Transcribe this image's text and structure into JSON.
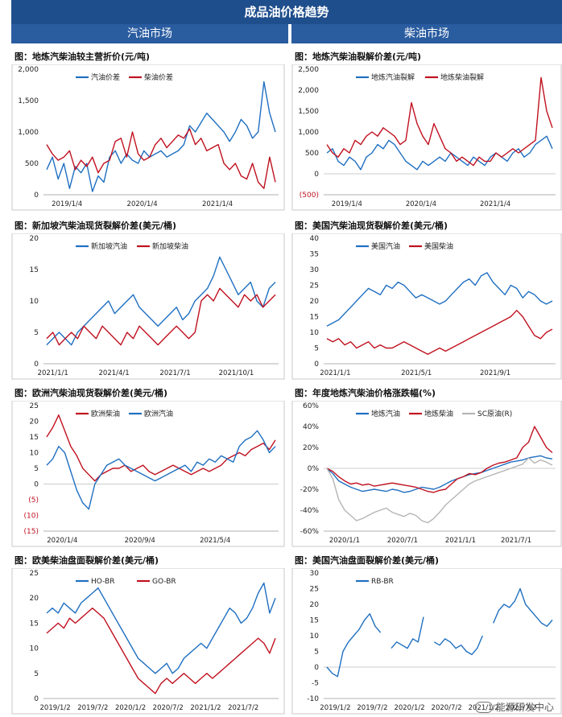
{
  "header": {
    "title": "成品油价格趋势",
    "left_section": "汽油市场",
    "right_section": "柴油市场"
  },
  "watermark": "能源研发中心",
  "colors": {
    "blue": "#1f6fc1",
    "red": "#c0111f",
    "gray": "#b5b5b5",
    "header_bg": "#1f4e8c"
  },
  "chart_data": [
    {
      "id": "c1",
      "type": "line",
      "title": "图：地炼汽柴油较主营折价(元/吨)",
      "yticks": [
        0,
        500,
        1000,
        1500,
        2000
      ],
      "ytick_labels": [
        "0",
        "500",
        "1,000",
        "1,500",
        "2,000"
      ],
      "ylim": [
        0,
        2000
      ],
      "xtick_labels": [
        "2019/1/4",
        "2020/1/4",
        "2021/1/4"
      ],
      "xtick_pos": [
        0.1,
        0.42,
        0.74
      ],
      "legend": [
        "汽油价差",
        "柴油价差"
      ],
      "series": [
        {
          "name": "汽油价差",
          "color": "blue",
          "values": [
            400,
            600,
            250,
            500,
            100,
            450,
            350,
            500,
            50,
            300,
            200,
            600,
            700,
            500,
            650,
            550,
            500,
            700,
            600,
            650,
            700,
            600,
            650,
            700,
            800,
            1100,
            1000,
            1150,
            1300,
            1200,
            1100,
            1000,
            850,
            1000,
            1200,
            1100,
            900,
            1000,
            1800,
            1300,
            1000
          ]
        },
        {
          "name": "柴油价差",
          "color": "red",
          "values": [
            800,
            650,
            550,
            600,
            700,
            400,
            550,
            450,
            600,
            350,
            500,
            550,
            850,
            900,
            600,
            1000,
            650,
            550,
            600,
            800,
            900,
            750,
            850,
            950,
            900,
            1050,
            800,
            900,
            700,
            750,
            800,
            500,
            400,
            500,
            300,
            250,
            500,
            200,
            100,
            600,
            200
          ]
        }
      ]
    },
    {
      "id": "c2",
      "type": "line",
      "title": "图：地炼汽柴油裂解价差(元/吨)",
      "yticks": [
        -500,
        0,
        500,
        1000,
        1500,
        2000,
        2500
      ],
      "ytick_labels": [
        "(500)",
        "0",
        "500",
        "1,000",
        "1,500",
        "2,000",
        "2,500"
      ],
      "ytick_red": [
        -500
      ],
      "ylim": [
        -500,
        2500
      ],
      "xtick_labels": [
        "2019/1/4",
        "2020/1/4",
        "2021/1/4"
      ],
      "xtick_pos": [
        0.1,
        0.42,
        0.74
      ],
      "legend": [
        "地炼汽油裂解",
        "地炼柴油裂解"
      ],
      "series": [
        {
          "name": "地炼汽油裂解",
          "color": "blue",
          "values": [
            500,
            600,
            300,
            200,
            400,
            300,
            100,
            400,
            500,
            700,
            600,
            800,
            700,
            500,
            300,
            200,
            100,
            300,
            200,
            300,
            400,
            300,
            500,
            400,
            300,
            200,
            400,
            300,
            200,
            400,
            500,
            400,
            300,
            500,
            600,
            400,
            500,
            700,
            800,
            900,
            600
          ]
        },
        {
          "name": "地炼柴油裂解",
          "color": "red",
          "values": [
            700,
            500,
            400,
            600,
            500,
            800,
            700,
            900,
            1000,
            900,
            1100,
            1000,
            900,
            700,
            800,
            1700,
            1200,
            900,
            700,
            1200,
            900,
            600,
            500,
            300,
            400,
            300,
            200,
            400,
            300,
            300,
            500,
            400,
            500,
            600,
            500,
            600,
            700,
            800,
            2300,
            1500,
            1100
          ]
        }
      ]
    },
    {
      "id": "c3",
      "type": "line",
      "title": "图：新加坡汽柴油现货裂解价差(美元/桶)",
      "yticks": [
        0,
        5,
        10,
        15,
        20
      ],
      "ytick_labels": [
        "0",
        "5",
        "10",
        "15",
        "20"
      ],
      "ylim": [
        0,
        20
      ],
      "xtick_labels": [
        "2021/1/1",
        "2021/4/1",
        "2021/7/1",
        "2021/10/1"
      ],
      "xtick_pos": [
        0.04,
        0.3,
        0.56,
        0.82
      ],
      "legend": [
        "新加坡汽油",
        "新加坡柴油"
      ],
      "series": [
        {
          "name": "新加坡汽油",
          "color": "blue",
          "values": [
            3,
            4,
            5,
            4,
            3,
            5,
            6,
            7,
            8,
            9,
            10,
            8,
            9,
            10,
            11,
            9,
            8,
            7,
            6,
            7,
            8,
            9,
            7,
            8,
            10,
            11,
            12,
            14,
            17,
            15,
            13,
            11,
            12,
            13,
            10,
            9,
            12,
            13
          ]
        },
        {
          "name": "新加坡柴油",
          "color": "red",
          "values": [
            4,
            5,
            3,
            4,
            5,
            4,
            6,
            5,
            4,
            6,
            5,
            4,
            3,
            5,
            4,
            6,
            5,
            4,
            3,
            4,
            5,
            6,
            5,
            4,
            5,
            10,
            11,
            10,
            12,
            11,
            10,
            9,
            11,
            10,
            11,
            9,
            10,
            11
          ]
        }
      ]
    },
    {
      "id": "c4",
      "type": "line",
      "title": "图：美国汽柴油现货裂解价差(美元/桶)",
      "yticks": [
        0,
        5,
        10,
        15,
        20,
        25,
        30,
        35,
        40
      ],
      "ytick_labels": [
        "0",
        "5",
        "10",
        "15",
        "20",
        "25",
        "30",
        "35",
        "40"
      ],
      "ylim": [
        0,
        40
      ],
      "xtick_labels": [
        "2021/1/1",
        "2021/5/1",
        "2021/9/1"
      ],
      "xtick_pos": [
        0.05,
        0.4,
        0.74
      ],
      "legend": [
        "美国汽油",
        "美国柴油"
      ],
      "series": [
        {
          "name": "美国汽油",
          "color": "blue",
          "values": [
            12,
            13,
            14,
            16,
            18,
            20,
            22,
            24,
            23,
            22,
            25,
            24,
            26,
            25,
            23,
            21,
            22,
            21,
            20,
            19,
            20,
            22,
            24,
            26,
            27,
            25,
            28,
            29,
            26,
            24,
            22,
            25,
            24,
            21,
            23,
            22,
            20,
            19,
            20
          ]
        },
        {
          "name": "美国柴油",
          "color": "red",
          "values": [
            8,
            7,
            8,
            6,
            7,
            5,
            6,
            7,
            5,
            6,
            5,
            5,
            6,
            7,
            6,
            5,
            4,
            3,
            4,
            5,
            4,
            5,
            6,
            7,
            8,
            9,
            10,
            11,
            12,
            13,
            14,
            15,
            17,
            15,
            12,
            9,
            8,
            10,
            11
          ]
        }
      ]
    },
    {
      "id": "c5",
      "type": "line",
      "title": "图：欧洲汽柴油现货裂解价差(美元/桶)",
      "yticks": [
        -15,
        -10,
        -5,
        0,
        5,
        10,
        15,
        20,
        25
      ],
      "ytick_labels": [
        "(15)",
        "(10)",
        "(5)",
        "0",
        "5",
        "10",
        "15",
        "20",
        "25"
      ],
      "ytick_red": [
        -15,
        -10,
        -5
      ],
      "ylim": [
        -15,
        25
      ],
      "xtick_labels": [
        "2020/1/4",
        "2020/9/4",
        "2021/5/4"
      ],
      "xtick_pos": [
        0.08,
        0.41,
        0.73
      ],
      "legend": [
        "欧洲柴油",
        "欧洲汽油"
      ],
      "series": [
        {
          "name": "欧洲柴油",
          "color": "red",
          "values": [
            15,
            18,
            22,
            17,
            12,
            9,
            5,
            3,
            1,
            3,
            4,
            5,
            5,
            6,
            4,
            5,
            6,
            4,
            3,
            4,
            5,
            6,
            5,
            4,
            3,
            4,
            5,
            4,
            5,
            6,
            8,
            9,
            10,
            9,
            11,
            12,
            13,
            11,
            14
          ]
        },
        {
          "name": "欧洲汽油",
          "color": "blue",
          "values": [
            6,
            8,
            12,
            10,
            4,
            -2,
            -6,
            -8,
            0,
            3,
            6,
            7,
            8,
            6,
            5,
            4,
            3,
            2,
            1,
            2,
            3,
            4,
            5,
            6,
            4,
            7,
            6,
            8,
            7,
            9,
            8,
            7,
            12,
            14,
            15,
            17,
            14,
            10,
            12
          ]
        }
      ]
    },
    {
      "id": "c6",
      "type": "line",
      "title": "图：年度地炼汽柴油价格涨跌幅(%)",
      "yticks": [
        -60,
        -40,
        -20,
        0,
        20,
        40,
        60
      ],
      "ytick_labels": [
        "-60%",
        "-40%",
        "-20%",
        "0%",
        "20%",
        "40%",
        "60%"
      ],
      "ylim": [
        -60,
        60
      ],
      "xtick_labels": [
        "2020/1/1",
        "2020/7/1",
        "2021/1/1",
        "2021/7/1"
      ],
      "xtick_pos": [
        0.09,
        0.34,
        0.59,
        0.83
      ],
      "legend": [
        "地炼汽油",
        "地炼柴油",
        "SC原油(R)"
      ],
      "series": [
        {
          "name": "地炼汽油",
          "color": "blue",
          "values": [
            0,
            -5,
            -12,
            -15,
            -18,
            -20,
            -22,
            -21,
            -20,
            -21,
            -22,
            -20,
            -21,
            -23,
            -22,
            -20,
            -18,
            -19,
            -20,
            -18,
            -15,
            -12,
            -10,
            -8,
            -6,
            -5,
            -4,
            -2,
            0,
            2,
            4,
            6,
            7,
            8,
            10,
            11,
            12,
            10,
            9
          ]
        },
        {
          "name": "地炼柴油",
          "color": "red",
          "values": [
            0,
            -3,
            -8,
            -12,
            -15,
            -14,
            -16,
            -15,
            -17,
            -16,
            -15,
            -14,
            -15,
            -16,
            -17,
            -18,
            -20,
            -22,
            -23,
            -21,
            -20,
            -15,
            -10,
            -8,
            -5,
            -6,
            -4,
            0,
            3,
            5,
            6,
            8,
            10,
            20,
            25,
            40,
            30,
            20,
            15
          ]
        },
        {
          "name": "SC原油(R)",
          "color": "gray",
          "values": [
            0,
            -10,
            -30,
            -40,
            -45,
            -50,
            -48,
            -45,
            -42,
            -40,
            -38,
            -42,
            -44,
            -46,
            -43,
            -45,
            -50,
            -52,
            -48,
            -42,
            -35,
            -30,
            -25,
            -20,
            -15,
            -12,
            -10,
            -8,
            -6,
            -4,
            -2,
            0,
            2,
            4,
            10,
            5,
            8,
            6,
            3
          ]
        }
      ]
    },
    {
      "id": "c7",
      "type": "line",
      "title": "图：欧美柴油盘面裂解价差(美元/桶)",
      "yticks": [
        0,
        5,
        10,
        15,
        20,
        25
      ],
      "ytick_labels": [
        "0",
        "5",
        "10",
        "15",
        "20",
        "25"
      ],
      "ylim": [
        0,
        25
      ],
      "xtick_labels": [
        "2019/1/2",
        "2019/7/2",
        "2020/1/2",
        "2020/7/2",
        "2021/1/2",
        "2021/7/2"
      ],
      "xtick_pos": [
        0.05,
        0.21,
        0.37,
        0.53,
        0.69,
        0.85
      ],
      "legend": [
        "HO-BR",
        "GO-BR"
      ],
      "series": [
        {
          "name": "HO-BR",
          "color": "blue",
          "values": [
            17,
            18,
            17,
            19,
            18,
            17,
            19,
            20,
            21,
            22,
            20,
            18,
            16,
            14,
            12,
            10,
            8,
            7,
            6,
            5,
            6,
            7,
            5,
            6,
            8,
            9,
            10,
            11,
            10,
            12,
            14,
            16,
            18,
            17,
            15,
            16,
            18,
            21,
            23,
            17,
            20
          ]
        },
        {
          "name": "GO-BR",
          "color": "red",
          "values": [
            13,
            14,
            15,
            14,
            16,
            15,
            16,
            17,
            18,
            17,
            16,
            14,
            12,
            10,
            8,
            6,
            4,
            3,
            2,
            1,
            3,
            4,
            3,
            4,
            5,
            4,
            3,
            4,
            5,
            4,
            5,
            6,
            7,
            8,
            9,
            10,
            11,
            12,
            11,
            9,
            12
          ]
        }
      ]
    },
    {
      "id": "c8",
      "type": "line",
      "title": "图：美国汽油盘面裂解价差(美元/桶)",
      "yticks": [
        -10,
        -5,
        0,
        5,
        10,
        15,
        20,
        25,
        30
      ],
      "ytick_labels": [
        "-10",
        "-5",
        "0",
        "5",
        "10",
        "15",
        "20",
        "25",
        "30"
      ],
      "ylim": [
        -10,
        30
      ],
      "xtick_labels": [
        "2019/1/2",
        "2019/7/2",
        "2020/1/2",
        "2020/7/2",
        "2021/1/2",
        "2021/7/2"
      ],
      "xtick_pos": [
        0.05,
        0.21,
        0.37,
        0.53,
        0.69,
        0.85
      ],
      "legend": [
        "RB-BR"
      ],
      "series": [
        {
          "name": "RB-BR",
          "color": "blue",
          "values": [
            0,
            -2,
            -3,
            5,
            8,
            10,
            12,
            15,
            17,
            13,
            11,
            null,
            6,
            8,
            7,
            6,
            9,
            8,
            16,
            null,
            8,
            7,
            9,
            8,
            6,
            7,
            5,
            4,
            6,
            10,
            null,
            14,
            18,
            20,
            19,
            21,
            25,
            20,
            18,
            16,
            14,
            13,
            15
          ]
        }
      ]
    }
  ]
}
